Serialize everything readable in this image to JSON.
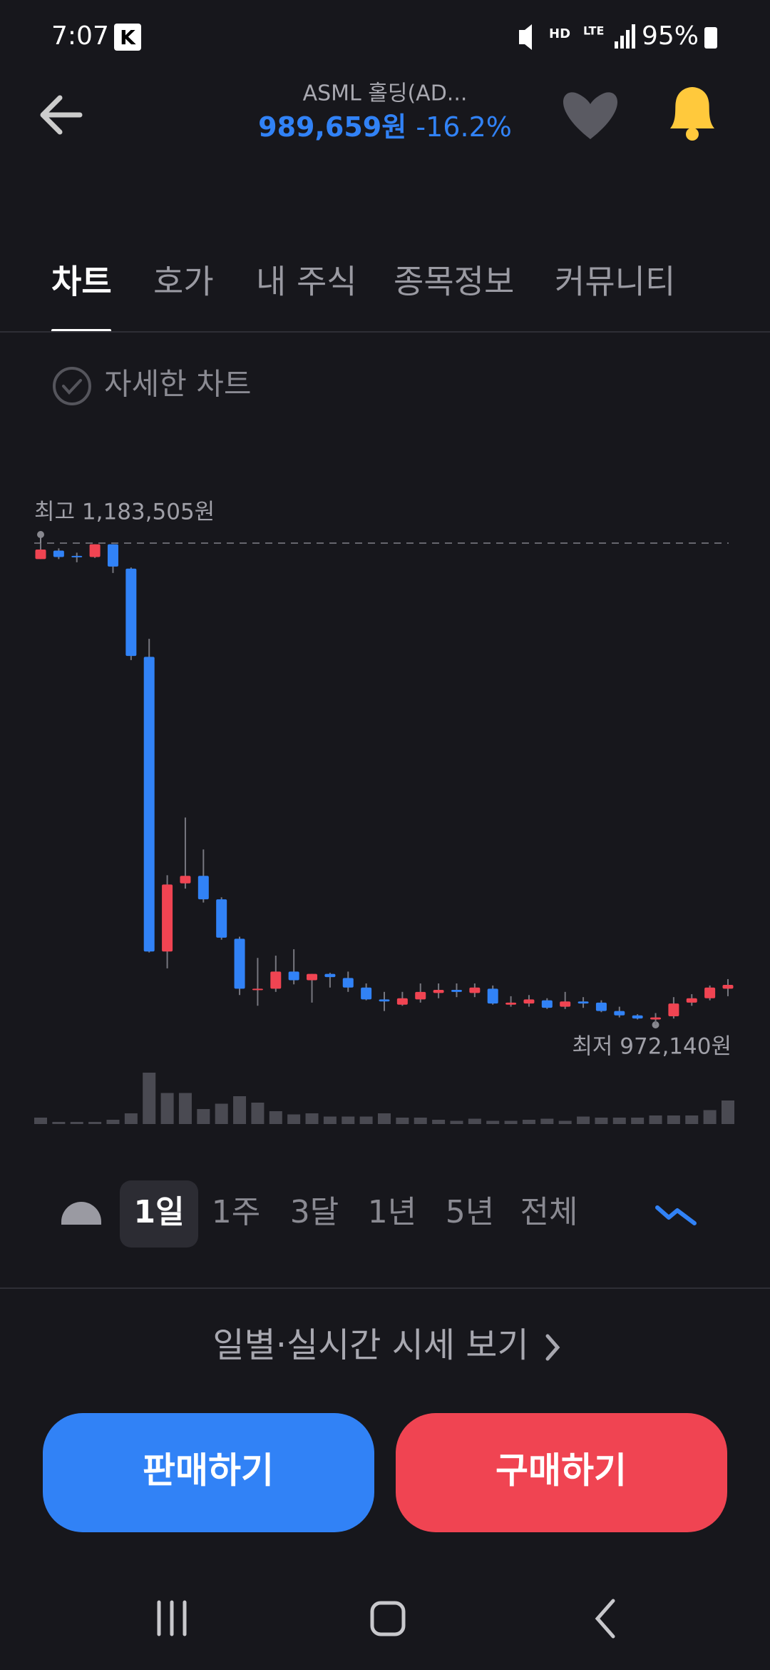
{
  "status_bar": {
    "time": "7:07",
    "battery": "95%"
  },
  "header": {
    "name": "ASML 홀딩(AD...",
    "price": "989,659원",
    "change": "-16.2%"
  },
  "tabs": [
    "차트",
    "호가",
    "내 주식",
    "종목정보",
    "커뮤니티"
  ],
  "detail_toggle": "자세한 차트",
  "chart_data": {
    "type": "candlestick",
    "high_label": "최고 1,183,505원",
    "low_label": "최저 972,140원",
    "up_color": "#f04452",
    "down_color": "#3182f6",
    "open": [
      1176500,
      1180200,
      1177900,
      1177400,
      1183000,
      1172300,
      1133600,
      1004300,
      1034200,
      1037500,
      1027200,
      1009900,
      987500,
      988000,
      995500,
      991700,
      994500,
      992700,
      988500,
      983300,
      981000,
      983300,
      986100,
      987500,
      986100,
      988000,
      981000,
      981500,
      982900,
      980100,
      982400,
      981900,
      978200,
      976300,
      974500,
      975900,
      981900,
      983800,
      988000
    ],
    "high": [
      1183505,
      1181200,
      1179300,
      1183000,
      1183000,
      1172800,
      1141500,
      1037800,
      1063100,
      1049100,
      1028100,
      1010800,
      1001500,
      1002500,
      1005300,
      994500,
      995000,
      995500,
      990300,
      986600,
      986600,
      990300,
      990300,
      990300,
      990300,
      989400,
      984700,
      985200,
      983800,
      986600,
      984300,
      982900,
      980100,
      976800,
      977300,
      984300,
      985600,
      989400,
      992200
    ],
    "low": [
      1176500,
      1176500,
      1175100,
      1177000,
      1170400,
      1132200,
      1003900,
      996900,
      1031900,
      1025800,
      1009500,
      985200,
      980500,
      986600,
      989900,
      981900,
      988500,
      986600,
      982900,
      978200,
      980500,
      981900,
      983800,
      984300,
      984300,
      981000,
      980100,
      980100,
      979100,
      979100,
      979600,
      977700,
      975400,
      974500,
      972140,
      974900,
      980500,
      982900,
      984700
    ],
    "close": [
      1180700,
      1177400,
      1177400,
      1183000,
      1173200,
      1134000,
      1004300,
      1033700,
      1037500,
      1027200,
      1010400,
      988000,
      988000,
      995500,
      991700,
      994500,
      993100,
      988500,
      983300,
      982400,
      983800,
      986600,
      987500,
      986600,
      988500,
      981500,
      981900,
      983300,
      979600,
      982400,
      981500,
      978200,
      976300,
      974900,
      975400,
      981500,
      983800,
      988500,
      989659
    ],
    "volume_color": "#4a4a52",
    "volume": [
      6,
      2,
      2,
      2,
      4,
      10,
      48,
      29,
      29,
      14,
      19,
      26,
      20,
      12,
      9,
      10,
      7,
      7,
      7,
      10,
      6,
      6,
      4,
      3,
      5,
      3,
      3,
      4,
      5,
      3,
      7,
      6,
      6,
      6,
      8,
      8,
      8,
      13,
      22
    ]
  },
  "periods": [
    "1일",
    "1주",
    "3달",
    "1년",
    "5년",
    "전체"
  ],
  "daily_link": "일별·실시간 시세 보기",
  "buttons": {
    "sell": "판매하기",
    "buy": "구매하기"
  }
}
